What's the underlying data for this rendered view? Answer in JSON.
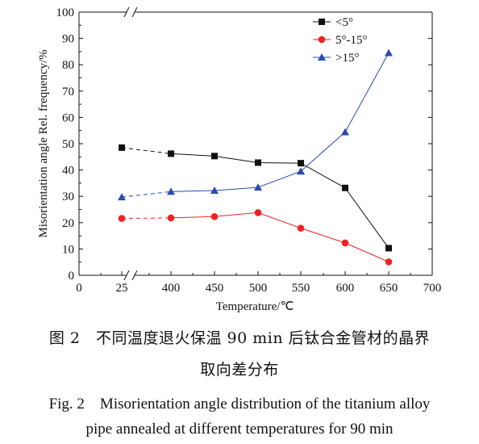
{
  "chart_data": {
    "type": "line",
    "x": [
      25,
      400,
      450,
      500,
      550,
      600,
      650
    ],
    "series": [
      {
        "name": "<5°",
        "marker": "square",
        "color": "#111111",
        "values": [
          48.5,
          46.2,
          45.3,
          42.8,
          42.6,
          33.2,
          10.3
        ]
      },
      {
        "name": "5°-15°",
        "marker": "circle",
        "color": "#ee2222",
        "values": [
          21.6,
          21.8,
          22.3,
          23.8,
          17.9,
          12.3,
          5.1
        ]
      },
      {
        "name": ">15°",
        "marker": "triangle",
        "color": "#2b4bb0",
        "values": [
          29.7,
          31.8,
          32.2,
          33.4,
          39.5,
          54.4,
          84.5
        ]
      }
    ],
    "xlabel": "Temperature/℃",
    "ylabel": "Misorientation angle Rel. frequency/%",
    "ylim": [
      0,
      100
    ],
    "y_ticks": [
      0,
      10,
      20,
      30,
      40,
      50,
      60,
      70,
      80,
      90,
      100
    ],
    "x_ticks": [
      0,
      25,
      400,
      450,
      500,
      550,
      600,
      650,
      700
    ],
    "x_axis_break": true,
    "legend_position": "top-right",
    "grid": false
  },
  "caption": {
    "cn_line1": "图 2　不同温度退火保温 90 min 后钛合金管材的晶界",
    "cn_line2": "取向差分布",
    "en_line1": "Fig. 2　Misorientation angle distribution of the titanium alloy",
    "en_line2": "pipe annealed at different temperatures for 90 min"
  }
}
